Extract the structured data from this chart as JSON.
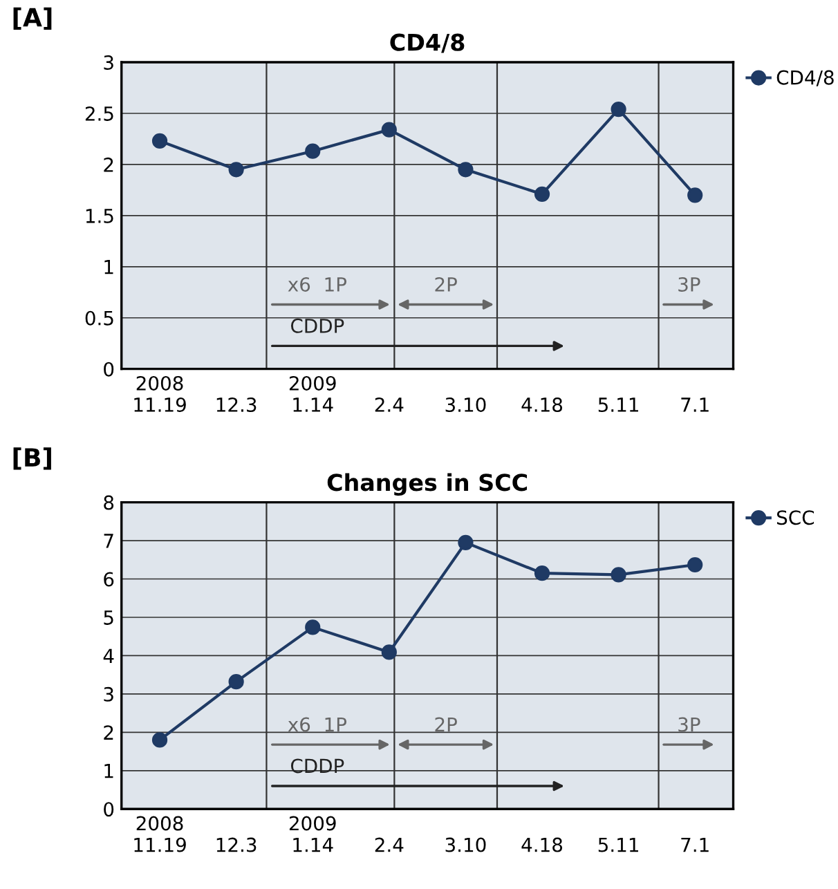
{
  "chart_data": [
    {
      "type": "line",
      "title": "CD4/8",
      "categories": [
        "2008\n11.19",
        "12.3",
        "2009\n1.14",
        "2.4",
        "3.10",
        "4.18",
        "5.11",
        "7.1"
      ],
      "series": [
        {
          "name": "CD4/8",
          "color": "#1f3a64",
          "values": [
            2.23,
            1.95,
            2.13,
            2.34,
            1.95,
            1.71,
            2.54,
            1.7
          ]
        }
      ],
      "ylim": [
        0,
        3
      ],
      "yticks": [
        0,
        0.5,
        1,
        1.5,
        2,
        2.5,
        3
      ],
      "grid": true,
      "legend": "top right",
      "marker": "circle",
      "line_style": "solid",
      "annotations": [
        "[A]",
        "x6  1P",
        "2P",
        "3P",
        "CDDP"
      ]
    },
    {
      "type": "line",
      "title": "Changes in SCC",
      "categories": [
        "2008\n11.19",
        "12.3",
        "2009\n1.14",
        "2.4",
        "3.10",
        "4.18",
        "5.11",
        "7.1"
      ],
      "series": [
        {
          "name": "SCC",
          "color": "#1f3a64",
          "values": [
            1.8,
            3.32,
            4.74,
            4.09,
            6.95,
            6.15,
            6.11,
            6.37
          ]
        }
      ],
      "ylim": [
        0,
        8
      ],
      "yticks": [
        0,
        1,
        2,
        3,
        4,
        5,
        6,
        7,
        8
      ],
      "grid": true,
      "legend": "top right",
      "marker": "circle",
      "line_style": "solid",
      "annotations": [
        "[B]",
        "x6  1P",
        "2P",
        "3P",
        "CDDP"
      ]
    }
  ]
}
